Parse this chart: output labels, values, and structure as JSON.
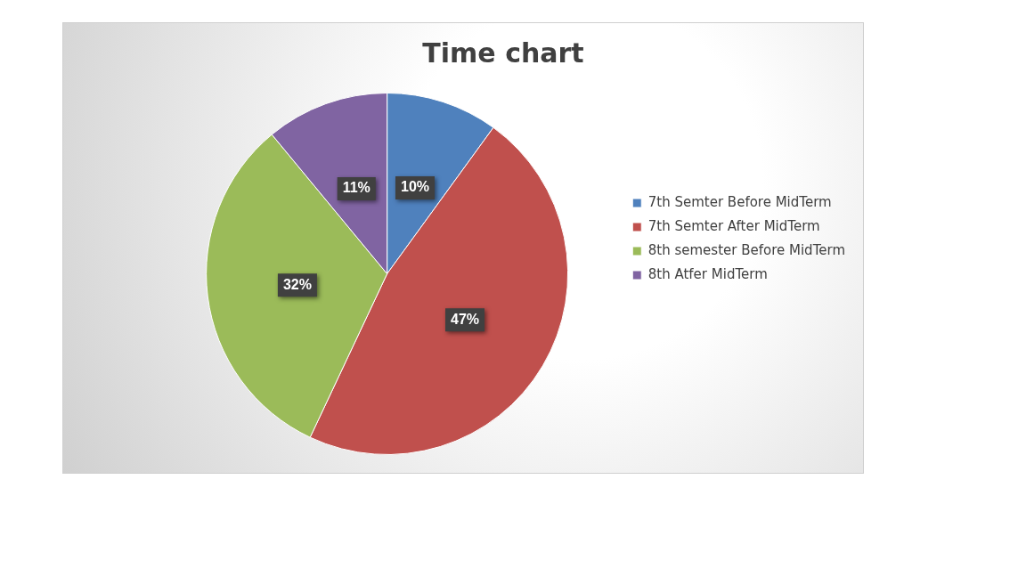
{
  "chart_data": {
    "type": "pie",
    "title": "Time chart",
    "categories": [
      "7th Semter Before MidTerm",
      "7th Semter After MidTerm",
      "8th semester Before MidTerm",
      "8th Atfer MidTerm"
    ],
    "values": [
      10,
      47,
      32,
      11
    ],
    "colors": [
      "#4f81bd",
      "#c0504d",
      "#9bbb59",
      "#8064a2"
    ],
    "value_labels": [
      "10%",
      "47%",
      "32%",
      "11%"
    ],
    "legend": "right"
  }
}
